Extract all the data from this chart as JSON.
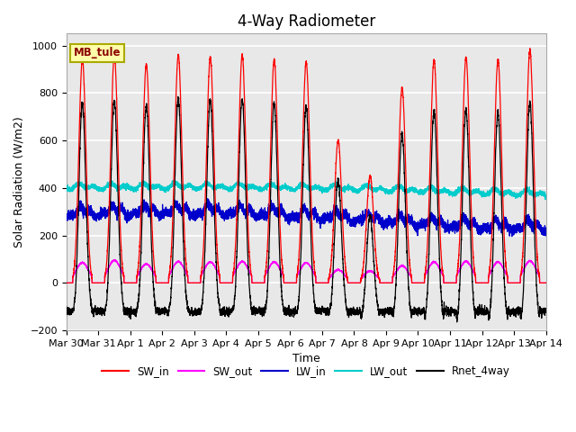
{
  "title": "4-Way Radiometer",
  "xlabel": "Time",
  "ylabel": "Solar Radiation (W/m2)",
  "ylim": [
    -200,
    1050
  ],
  "station_label": "MB_tule",
  "x_tick_labels": [
    "Mar 30",
    "Mar 31",
    "Apr 1",
    "Apr 2",
    "Apr 3",
    "Apr 4",
    "Apr 5",
    "Apr 6",
    "Apr 7",
    "Apr 8",
    "Apr 9",
    "Apr 10",
    "Apr 11",
    "Apr 12",
    "Apr 13",
    "Apr 14"
  ],
  "colors": {
    "SW_in": "#FF0000",
    "SW_out": "#FF00FF",
    "LW_in": "#0000CC",
    "LW_out": "#00CCCC",
    "Rnet_4way": "#000000"
  },
  "background_color": "#E8E8E8",
  "grid_color": "#FFFFFF",
  "title_fontsize": 12,
  "label_fontsize": 9,
  "tick_fontsize": 8,
  "sw_in_peaks": [
    940,
    960,
    920,
    960,
    950,
    960,
    940,
    930,
    600,
    450,
    820,
    940,
    950,
    940,
    980
  ],
  "sw_out_peaks": [
    85,
    95,
    80,
    90,
    88,
    90,
    88,
    85,
    55,
    50,
    72,
    88,
    90,
    88,
    92
  ],
  "lw_in_base": 270,
  "lw_out_base": 390,
  "night_rnet": -120
}
